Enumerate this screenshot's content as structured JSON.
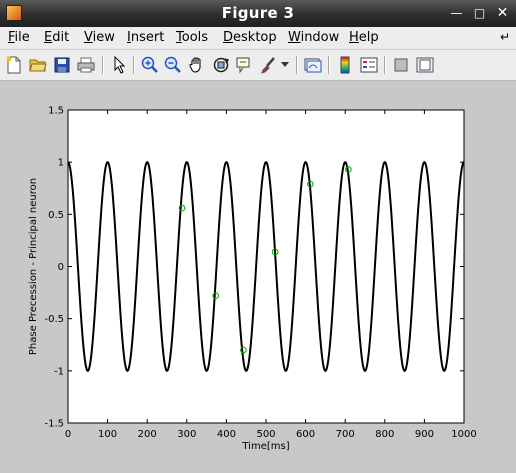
{
  "window": {
    "title": "Figure 3"
  },
  "menu": {
    "items": [
      {
        "pre": "",
        "u": "F",
        "post": "ile"
      },
      {
        "pre": "",
        "u": "E",
        "post": "dit"
      },
      {
        "pre": "",
        "u": "V",
        "post": "iew"
      },
      {
        "pre": "",
        "u": "I",
        "post": "nsert"
      },
      {
        "pre": "",
        "u": "T",
        "post": "ools"
      },
      {
        "pre": "",
        "u": "D",
        "post": "esktop"
      },
      {
        "pre": "",
        "u": "W",
        "post": "indow"
      },
      {
        "pre": "",
        "u": "H",
        "post": "elp"
      }
    ]
  },
  "toolbar": {
    "buttons": [
      "new-figure",
      "open-file",
      "save",
      "print",
      "edit-plot-arrow",
      "zoom-in",
      "zoom-out",
      "pan-hand",
      "rotate-3d",
      "data-cursor",
      "brush",
      "brush-dropdown",
      "link-plot",
      "insert-colorbar",
      "insert-legend",
      "hide-plot-tools",
      "show-plot-tools"
    ]
  },
  "chart_data": {
    "type": "line",
    "xlabel": "Time[ms]",
    "ylabel": "Phase Precession - Principal neuron",
    "xlim": [
      0,
      1000
    ],
    "ylim": [
      -1.5,
      1.5
    ],
    "xticks": [
      0,
      100,
      200,
      300,
      400,
      500,
      600,
      700,
      800,
      900,
      1000
    ],
    "yticks": [
      -1.5,
      -1,
      -0.5,
      0,
      0.5,
      1,
      1.5
    ],
    "xtick_labels": [
      "0",
      "100",
      "200",
      "300",
      "400",
      "500",
      "600",
      "700",
      "800",
      "900",
      "1000"
    ],
    "ytick_labels": [
      "-1.5",
      "-1",
      "-0.5",
      "0",
      "0.5",
      "1",
      "1.5"
    ],
    "grid": false,
    "series": [
      {
        "style": "line",
        "color": "#000000",
        "function": "cos",
        "period_ms": 100,
        "amplitude": 1,
        "phase_offset_ms": 0
      },
      {
        "style": "markers",
        "marker": "circle",
        "color": "#00a000",
        "points": [
          {
            "x": 288,
            "y": 0.56
          },
          {
            "x": 373,
            "y": -0.28
          },
          {
            "x": 443,
            "y": -0.8
          },
          {
            "x": 523,
            "y": 0.14
          },
          {
            "x": 612,
            "y": 0.79
          },
          {
            "x": 708,
            "y": 0.93
          }
        ]
      }
    ]
  }
}
